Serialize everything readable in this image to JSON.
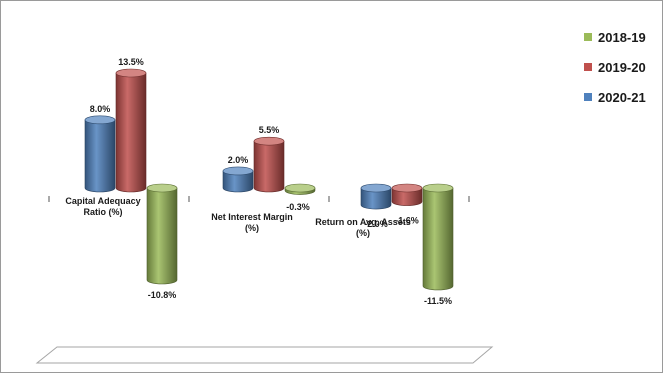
{
  "chart_data": {
    "type": "bar",
    "categories": [
      [
        "Capital Adequacy",
        "Ratio (%)"
      ],
      [
        "Net Interest Margin",
        "(%)"
      ],
      [
        "Return on Avg. Assets",
        "(%)"
      ]
    ],
    "series": [
      {
        "name": "2018-19",
        "color": "#9bbb59",
        "values": [
          -10.8,
          -0.3,
          -11.5
        ],
        "labels": [
          "-10.8%",
          "-0.3%",
          "-11.5%"
        ]
      },
      {
        "name": "2019-20",
        "color": "#c0504d",
        "values": [
          13.5,
          5.5,
          -1.6
        ],
        "labels": [
          "13.5%",
          "5.5%",
          "-1.6%"
        ]
      },
      {
        "name": "2020-21",
        "color": "#4f81bd",
        "values": [
          8.0,
          2.0,
          -2.0
        ],
        "labels": [
          "8.0%",
          "2.0%",
          "-2.0%"
        ]
      }
    ],
    "draw_order": [
      "2020-21",
      "2019-20",
      "2018-19"
    ],
    "legend": {
      "position": "right",
      "order": [
        "2018-19",
        "2019-20",
        "2020-21"
      ]
    },
    "bar_style": "3d-cylinder",
    "grid": false,
    "title": "",
    "xlabel": "",
    "ylabel": ""
  }
}
